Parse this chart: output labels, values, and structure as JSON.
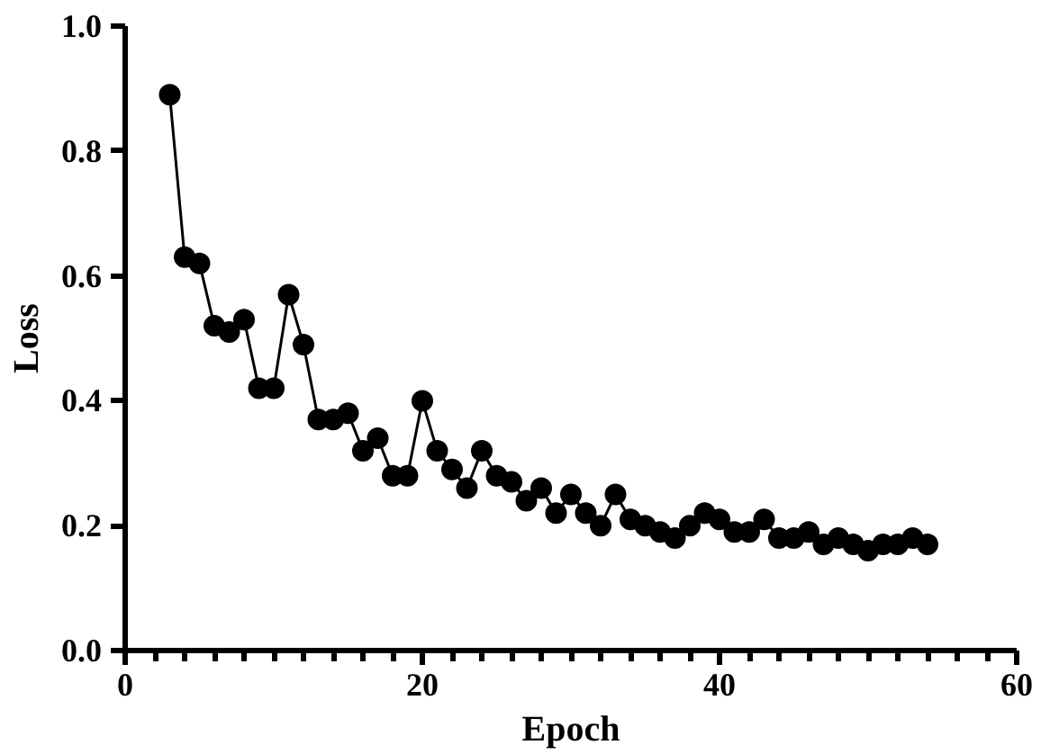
{
  "chart_data": {
    "type": "line",
    "xlabel": "Epoch",
    "ylabel": "Loss",
    "marker": "circle",
    "line_style": "solid",
    "grid": false,
    "x": [
      3,
      4,
      5,
      6,
      7,
      8,
      9,
      10,
      11,
      12,
      13,
      14,
      15,
      16,
      17,
      18,
      19,
      20,
      21,
      22,
      23,
      24,
      25,
      26,
      27,
      28,
      29,
      30,
      31,
      32,
      33,
      34,
      35,
      36,
      37,
      38,
      39,
      40,
      41,
      42,
      43,
      44,
      45,
      46,
      47,
      48,
      49,
      50,
      51,
      52,
      53,
      54
    ],
    "series": [
      {
        "color": "#000000",
        "values": [
          0.89,
          0.63,
          0.62,
          0.52,
          0.51,
          0.53,
          0.42,
          0.42,
          0.57,
          0.49,
          0.37,
          0.37,
          0.38,
          0.32,
          0.34,
          0.28,
          0.28,
          0.4,
          0.32,
          0.29,
          0.26,
          0.32,
          0.28,
          0.27,
          0.24,
          0.26,
          0.22,
          0.25,
          0.22,
          0.2,
          0.25,
          0.21,
          0.2,
          0.19,
          0.18,
          0.2,
          0.22,
          0.21,
          0.19,
          0.19,
          0.21,
          0.18,
          0.18,
          0.19,
          0.17,
          0.18,
          0.17,
          0.16,
          0.17,
          0.17,
          0.18,
          0.17
        ]
      }
    ],
    "xlim": [
      0,
      60
    ],
    "xticks": [
      0,
      20,
      40,
      60
    ],
    "ylim": [
      0,
      1.0
    ],
    "yticks": [
      {
        "value": 0,
        "label": "0.0"
      },
      {
        "value": 0.2,
        "label": "0.2"
      },
      {
        "value": 0.4,
        "label": "0.4"
      },
      {
        "value": 0.6,
        "label": "0.6"
      },
      {
        "value": 0.8,
        "label": "0.8"
      },
      {
        "value": 1.0,
        "label": "1.0"
      }
    ]
  }
}
